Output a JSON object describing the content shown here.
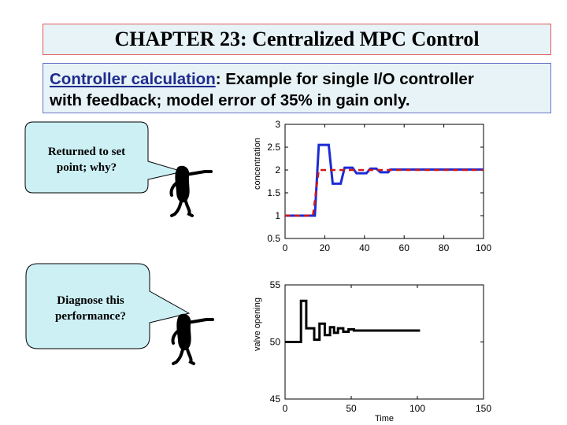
{
  "title": "CHAPTER 23: Centralized MPC Control",
  "subtitle": {
    "keyword": "Controller calculation",
    "line1_rest": ": Example for single I/O controller",
    "line2": "with feedback; model error of 35% in gain only."
  },
  "callouts": [
    {
      "lines": [
        "Returned to set",
        "point; why?"
      ]
    },
    {
      "lines": [
        "Diagnose this",
        "performance?"
      ]
    }
  ],
  "colors": {
    "banner_bg": "#e7f3f7",
    "bubble_fill": "#ccf0f4",
    "output": "#1b2bd6",
    "setpoint": "#d11818",
    "input": "#000000"
  },
  "chart_data": [
    {
      "type": "line",
      "ylabel": "concentration",
      "xlabel": "",
      "xlim": [
        0,
        100
      ],
      "ylim": [
        0.5,
        3
      ],
      "xticks": [
        "0",
        "20",
        "40",
        "60",
        "80",
        "100"
      ],
      "yticks": [
        "0.5",
        "1",
        "1.5",
        "2",
        "2.5",
        "3"
      ],
      "grid": false,
      "series": [
        {
          "style": "solid",
          "color": "#1b2bd6",
          "points": [
            [
              0,
              1
            ],
            [
              15,
              1
            ],
            [
              17,
              2.55
            ],
            [
              22,
              2.55
            ],
            [
              24,
              1.7
            ],
            [
              28,
              1.7
            ],
            [
              30,
              2.05
            ],
            [
              34,
              2.05
            ],
            [
              36,
              1.93
            ],
            [
              41,
              1.93
            ],
            [
              43,
              2.03
            ],
            [
              46,
              2.03
            ],
            [
              48,
              1.95
            ],
            [
              52,
              1.95
            ],
            [
              53,
              2.01
            ],
            [
              100,
              2.01
            ]
          ]
        },
        {
          "style": "dashed",
          "color": "#d11818",
          "points": [
            [
              0,
              1
            ],
            [
              14,
              1
            ],
            [
              17,
              2
            ],
            [
              100,
              2
            ]
          ]
        }
      ]
    },
    {
      "type": "line",
      "ylabel": "valve opening",
      "xlabel": "Time",
      "xlim": [
        0,
        150
      ],
      "ylim": [
        45,
        55
      ],
      "xticks": [
        "0",
        "50",
        "100",
        "150"
      ],
      "yticks": [
        "45",
        "50",
        "55"
      ],
      "grid": false,
      "series": [
        {
          "style": "solid",
          "color": "#000000",
          "points": [
            [
              0,
              50
            ],
            [
              12,
              50
            ],
            [
              12,
              53.6
            ],
            [
              16,
              53.6
            ],
            [
              16,
              51.2
            ],
            [
              22,
              51.2
            ],
            [
              22,
              50.2
            ],
            [
              26,
              50.2
            ],
            [
              26,
              51.6
            ],
            [
              30,
              51.6
            ],
            [
              30,
              50.6
            ],
            [
              34,
              50.6
            ],
            [
              34,
              51.3
            ],
            [
              37,
              51.3
            ],
            [
              37,
              50.8
            ],
            [
              40,
              50.8
            ],
            [
              40,
              51.2
            ],
            [
              44,
              51.2
            ],
            [
              44,
              50.9
            ],
            [
              48,
              50.9
            ],
            [
              48,
              51.1
            ],
            [
              52,
              51.1
            ],
            [
              52,
              51.0
            ],
            [
              102,
              51.0
            ]
          ]
        }
      ]
    }
  ]
}
